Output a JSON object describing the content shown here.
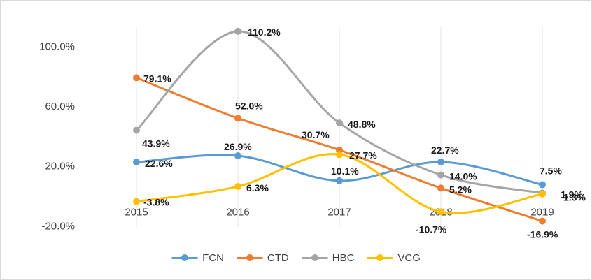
{
  "chart_data": {
    "type": "line",
    "smooth": true,
    "categories": [
      "2015",
      "2016",
      "2017",
      "2018",
      "2019"
    ],
    "y_tick_labels": [
      "-20.0%",
      "20.0%",
      "60.0%",
      "100.0%"
    ],
    "y_tick_values": [
      -20,
      20,
      60,
      100
    ],
    "ylim": [
      -20,
      110
    ],
    "grid": false,
    "legend": "bottom",
    "series": [
      {
        "name": "FCN",
        "color": "#5B9BD5",
        "values": [
          22.6,
          26.9,
          10.1,
          22.7,
          7.5
        ],
        "labels": [
          "22.6%",
          "26.9%",
          "10.1%",
          "22.7%",
          "7.5%"
        ]
      },
      {
        "name": "CTD",
        "color": "#ED7D31",
        "values": [
          79.1,
          52.0,
          30.7,
          5.2,
          -16.9
        ],
        "labels": [
          "79.1%",
          "52.0%",
          "30.7%",
          "5.2%",
          "-16.9%"
        ]
      },
      {
        "name": "HBC",
        "color": "#A5A5A5",
        "values": [
          43.9,
          110.2,
          48.8,
          14.0,
          1.9
        ],
        "labels": [
          "43.9%",
          "110.2%",
          "48.8%",
          "14.0%",
          "1.9%"
        ]
      },
      {
        "name": "VCG",
        "color": "#FFC000",
        "values": [
          -3.8,
          6.3,
          27.7,
          -10.7,
          1.3
        ],
        "labels": [
          "-3.8%",
          "6.3%",
          "27.7%",
          "-10.7%",
          "1.3%"
        ]
      }
    ]
  }
}
